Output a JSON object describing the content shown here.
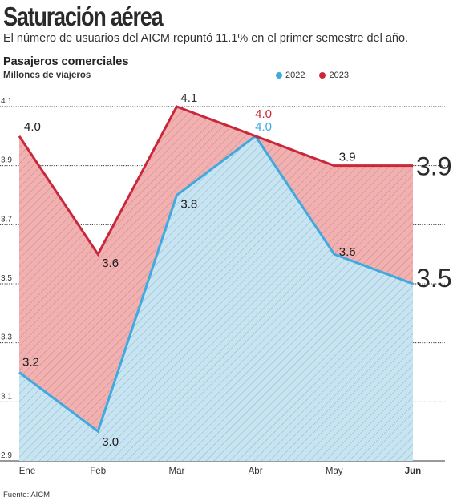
{
  "title": "Saturación aérea",
  "subtitle": "El número de usuarios del AICM repuntó 11.1% en el primer semestre del año.",
  "source": "Fuente: AICM.",
  "colors": {
    "s2022": "#3fa9e0",
    "s2023": "#c9283a",
    "fill2022": "#c6e4f2",
    "fill2023": "#f2b1b0"
  },
  "chart_data": {
    "type": "area",
    "title": "Pasajeros comerciales",
    "ylabel": "Millones de viajeros",
    "categories": [
      "Ene",
      "Feb",
      "Mar",
      "Abr",
      "May",
      "Jun"
    ],
    "yticks": [
      "4.1",
      "3.9",
      "3.7",
      "3.5",
      "3.3",
      "3.1",
      "2.9"
    ],
    "ylim": [
      2.9,
      4.1
    ],
    "grid": true,
    "legend_position": "top-right",
    "series": [
      {
        "name": "2022",
        "values": [
          3.2,
          3.0,
          3.8,
          4.0,
          3.6,
          3.5
        ],
        "labels": [
          "3.2",
          "3.0",
          "3.8",
          "4.0",
          "3.6",
          "3.5"
        ]
      },
      {
        "name": "2023",
        "values": [
          4.0,
          3.6,
          4.1,
          4.0,
          3.9,
          3.9
        ],
        "labels": [
          "4.0",
          "3.6",
          "4.1",
          "4.0",
          "3.9",
          "3.9"
        ]
      }
    ]
  }
}
